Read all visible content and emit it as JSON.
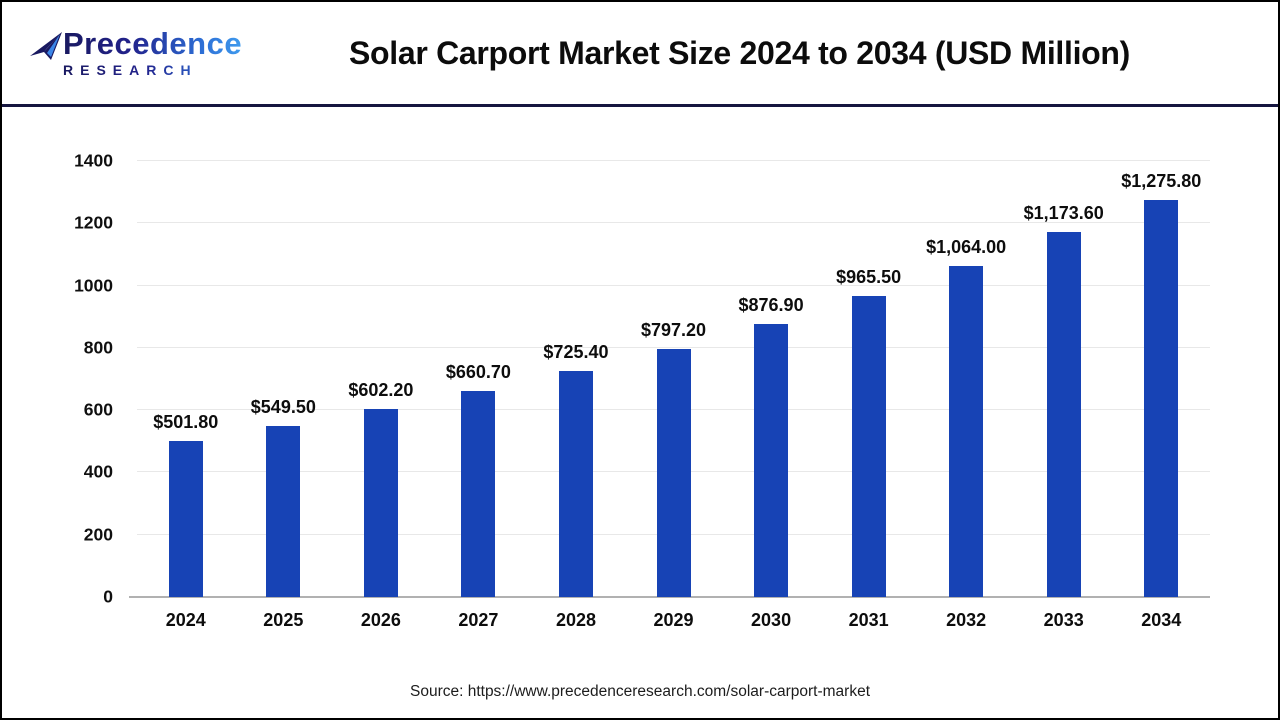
{
  "header": {
    "logo": {
      "line1": "Precedence",
      "line2": "RESEARCH",
      "icon": "paper-plane-icon"
    },
    "title": "Solar Carport Market Size 2024 to 2034 (USD Million)"
  },
  "chart_data": {
    "type": "bar",
    "title": "Solar Carport Market Size 2024 to 2034 (USD Million)",
    "categories": [
      "2024",
      "2025",
      "2026",
      "2027",
      "2028",
      "2029",
      "2030",
      "2031",
      "2032",
      "2033",
      "2034"
    ],
    "values": [
      501.8,
      549.5,
      602.2,
      660.7,
      725.4,
      797.2,
      876.9,
      965.5,
      1064.0,
      1173.6,
      1275.8
    ],
    "value_labels": [
      "$501.80",
      "$549.50",
      "$602.20",
      "$660.70",
      "$725.40",
      "$797.20",
      "$876.90",
      "$965.50",
      "$1,064.00",
      "$1,173.60",
      "$1,275.80"
    ],
    "xlabel": "",
    "ylabel": "",
    "ylim": [
      0,
      1400
    ],
    "yticks": [
      0,
      200,
      400,
      600,
      800,
      1000,
      1200,
      1400
    ],
    "grid": "horizontal",
    "legend_position": "none",
    "bar_color": "#1743b5",
    "gridline_color": "#e8e8e8",
    "baseline_color": "#b1b1b1"
  },
  "footer": {
    "source": "Source: https://www.precedenceresearch.com/solar-carport-market"
  },
  "colors": {
    "page_border": "#000000",
    "header_divider": "#15153f",
    "logo_navy": "#191960",
    "logo_blue": "#3f9bee",
    "text": "#0d0d0d"
  }
}
